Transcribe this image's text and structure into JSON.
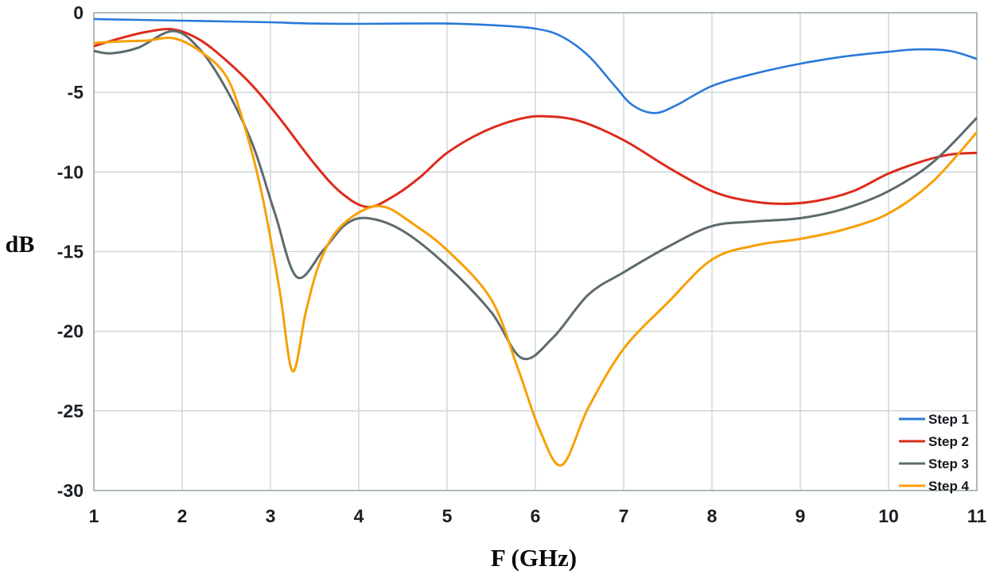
{
  "chart_data": {
    "type": "line",
    "title": "",
    "xlabel": "F (GHz)",
    "ylabel": "dB",
    "xlim": [
      1,
      11
    ],
    "ylim": [
      -30,
      0
    ],
    "grid": true,
    "legend_position": "bottom-right",
    "x_ticks": [
      {
        "value": 1,
        "label": "1"
      },
      {
        "value": 2,
        "label": "2"
      },
      {
        "value": 3,
        "label": "3"
      },
      {
        "value": 4,
        "label": "4"
      },
      {
        "value": 5,
        "label": "5"
      },
      {
        "value": 6,
        "label": "6"
      },
      {
        "value": 7,
        "label": "7"
      },
      {
        "value": 8,
        "label": "8"
      },
      {
        "value": 9,
        "label": "9"
      },
      {
        "value": 10,
        "label": "10"
      },
      {
        "value": 11,
        "label": "11"
      }
    ],
    "y_ticks": [
      {
        "value": 0,
        "label": "0"
      },
      {
        "value": -5,
        "label": "-5"
      },
      {
        "value": -10,
        "label": "-10"
      },
      {
        "value": -15,
        "label": "-15"
      },
      {
        "value": -20,
        "label": "-20"
      },
      {
        "value": -25,
        "label": "-25"
      },
      {
        "value": -30,
        "label": "-30"
      }
    ],
    "colors": {
      "grid": "#c9d3d5",
      "border": "#93a3a6",
      "step1": "#2979da",
      "step2": "#dd2b1c",
      "step3": "#5d6b6e",
      "step4": "#f7a008"
    },
    "series": [
      {
        "name": "Step 1",
        "color": "#2979da",
        "stroke_width": 2.6,
        "points": [
          [
            1,
            -0.4
          ],
          [
            1.5,
            -0.45
          ],
          [
            2,
            -0.5
          ],
          [
            2.5,
            -0.55
          ],
          [
            3,
            -0.6
          ],
          [
            3.5,
            -0.68
          ],
          [
            4,
            -0.7
          ],
          [
            4.5,
            -0.68
          ],
          [
            5,
            -0.68
          ],
          [
            5.5,
            -0.78
          ],
          [
            6,
            -1.0
          ],
          [
            6.3,
            -1.5
          ],
          [
            6.6,
            -2.7
          ],
          [
            6.9,
            -4.6
          ],
          [
            7.1,
            -5.8
          ],
          [
            7.35,
            -6.3
          ],
          [
            7.6,
            -5.8
          ],
          [
            8,
            -4.6
          ],
          [
            8.5,
            -3.8
          ],
          [
            9,
            -3.2
          ],
          [
            9.5,
            -2.75
          ],
          [
            10,
            -2.45
          ],
          [
            10.35,
            -2.3
          ],
          [
            10.7,
            -2.4
          ],
          [
            11,
            -2.9
          ]
        ]
      },
      {
        "name": "Step 2",
        "color": "#dd2b1c",
        "stroke_width": 3,
        "points": [
          [
            1,
            -2.1
          ],
          [
            1.3,
            -1.6
          ],
          [
            1.6,
            -1.2
          ],
          [
            1.9,
            -1.05
          ],
          [
            2.2,
            -1.7
          ],
          [
            2.5,
            -3.0
          ],
          [
            2.8,
            -4.6
          ],
          [
            3.1,
            -6.6
          ],
          [
            3.5,
            -9.5
          ],
          [
            3.8,
            -11.3
          ],
          [
            4.1,
            -12.2
          ],
          [
            4.4,
            -11.5
          ],
          [
            4.7,
            -10.3
          ],
          [
            5,
            -8.8
          ],
          [
            5.4,
            -7.5
          ],
          [
            5.8,
            -6.7
          ],
          [
            6.1,
            -6.5
          ],
          [
            6.5,
            -6.8
          ],
          [
            7,
            -8.0
          ],
          [
            7.5,
            -9.7
          ],
          [
            8,
            -11.2
          ],
          [
            8.4,
            -11.8
          ],
          [
            8.8,
            -12.0
          ],
          [
            9.2,
            -11.8
          ],
          [
            9.6,
            -11.2
          ],
          [
            10,
            -10.1
          ],
          [
            10.4,
            -9.3
          ],
          [
            10.7,
            -8.9
          ],
          [
            11,
            -8.8
          ]
        ]
      },
      {
        "name": "Step 3",
        "color": "#5d6b6e",
        "stroke_width": 3,
        "points": [
          [
            1,
            -2.4
          ],
          [
            1.2,
            -2.55
          ],
          [
            1.5,
            -2.2
          ],
          [
            1.9,
            -1.15
          ],
          [
            2.2,
            -2.3
          ],
          [
            2.5,
            -4.8
          ],
          [
            2.8,
            -8.3
          ],
          [
            3.05,
            -12.6
          ],
          [
            3.3,
            -16.6
          ],
          [
            3.6,
            -14.9
          ],
          [
            3.85,
            -13.3
          ],
          [
            4.1,
            -12.9
          ],
          [
            4.5,
            -13.7
          ],
          [
            5,
            -15.9
          ],
          [
            5.5,
            -18.8
          ],
          [
            5.85,
            -21.7
          ],
          [
            6.2,
            -20.4
          ],
          [
            6.6,
            -17.7
          ],
          [
            7,
            -16.3
          ],
          [
            7.5,
            -14.7
          ],
          [
            8,
            -13.4
          ],
          [
            8.5,
            -13.1
          ],
          [
            9,
            -12.9
          ],
          [
            9.5,
            -12.3
          ],
          [
            10,
            -11.2
          ],
          [
            10.5,
            -9.4
          ],
          [
            11,
            -6.6
          ]
        ]
      },
      {
        "name": "Step 4",
        "color": "#f7a008",
        "stroke_width": 3,
        "points": [
          [
            1,
            -1.9
          ],
          [
            1.3,
            -1.8
          ],
          [
            1.6,
            -1.75
          ],
          [
            1.9,
            -1.6
          ],
          [
            2.2,
            -2.4
          ],
          [
            2.5,
            -4.0
          ],
          [
            2.7,
            -7.0
          ],
          [
            2.9,
            -11.3
          ],
          [
            3.1,
            -17.3
          ],
          [
            3.25,
            -22.5
          ],
          [
            3.4,
            -18.8
          ],
          [
            3.55,
            -15.8
          ],
          [
            3.75,
            -13.7
          ],
          [
            4.05,
            -12.4
          ],
          [
            4.3,
            -12.2
          ],
          [
            4.6,
            -13.2
          ],
          [
            5,
            -14.9
          ],
          [
            5.5,
            -18.0
          ],
          [
            5.8,
            -22.3
          ],
          [
            6.05,
            -26.2
          ],
          [
            6.3,
            -28.4
          ],
          [
            6.6,
            -24.8
          ],
          [
            7,
            -21.1
          ],
          [
            7.5,
            -18.2
          ],
          [
            8,
            -15.5
          ],
          [
            8.5,
            -14.6
          ],
          [
            9,
            -14.2
          ],
          [
            9.5,
            -13.6
          ],
          [
            10,
            -12.6
          ],
          [
            10.5,
            -10.6
          ],
          [
            11,
            -7.5
          ]
        ]
      }
    ]
  }
}
